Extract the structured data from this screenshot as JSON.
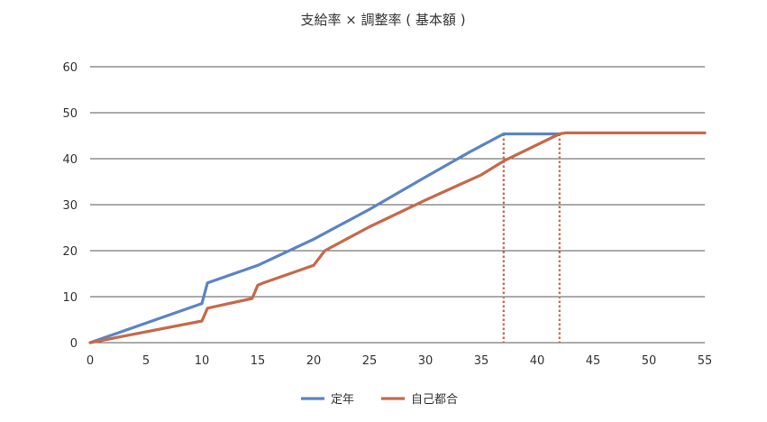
{
  "chart_data": {
    "type": "line",
    "title": "支給率 × 調整率 ( 基本額 )",
    "xlabel": "",
    "ylabel": "",
    "xlim": [
      0,
      55
    ],
    "ylim": [
      0,
      60
    ],
    "x_ticks": [
      "0",
      "5",
      "10",
      "15",
      "20",
      "25",
      "30",
      "35",
      "40",
      "45",
      "50",
      "55"
    ],
    "y_ticks": [
      "0",
      "10",
      "20",
      "30",
      "40",
      "50",
      "60"
    ],
    "grid": "horizontal",
    "legend": "bottom",
    "series": [
      {
        "name": "定年",
        "color": "#5b84c4",
        "points": [
          [
            0,
            0
          ],
          [
            10,
            8.5
          ],
          [
            10.5,
            13
          ],
          [
            15,
            16.8
          ],
          [
            20,
            22.5
          ],
          [
            25,
            29
          ],
          [
            30,
            36
          ],
          [
            34,
            41.5
          ],
          [
            37,
            45.4
          ],
          [
            42,
            45.4
          ]
        ]
      },
      {
        "name": "自己都合",
        "color": "#c6694a",
        "points": [
          [
            0,
            0
          ],
          [
            10,
            4.7
          ],
          [
            10.5,
            7.5
          ],
          [
            14.5,
            9.6
          ],
          [
            15,
            12.5
          ],
          [
            15.5,
            13
          ],
          [
            20,
            16.8
          ],
          [
            21,
            20
          ],
          [
            25,
            25.2
          ],
          [
            30,
            31
          ],
          [
            35,
            36.5
          ],
          [
            37,
            39.5
          ],
          [
            42,
            45.4
          ],
          [
            42.5,
            45.6
          ],
          [
            55,
            45.6
          ]
        ]
      }
    ],
    "reference_lines": [
      {
        "x": 37,
        "y": 45.4,
        "color": "#c6694a",
        "style": "dotted"
      },
      {
        "x": 42,
        "y": 45.4,
        "color": "#c6694a",
        "style": "dotted"
      }
    ]
  }
}
